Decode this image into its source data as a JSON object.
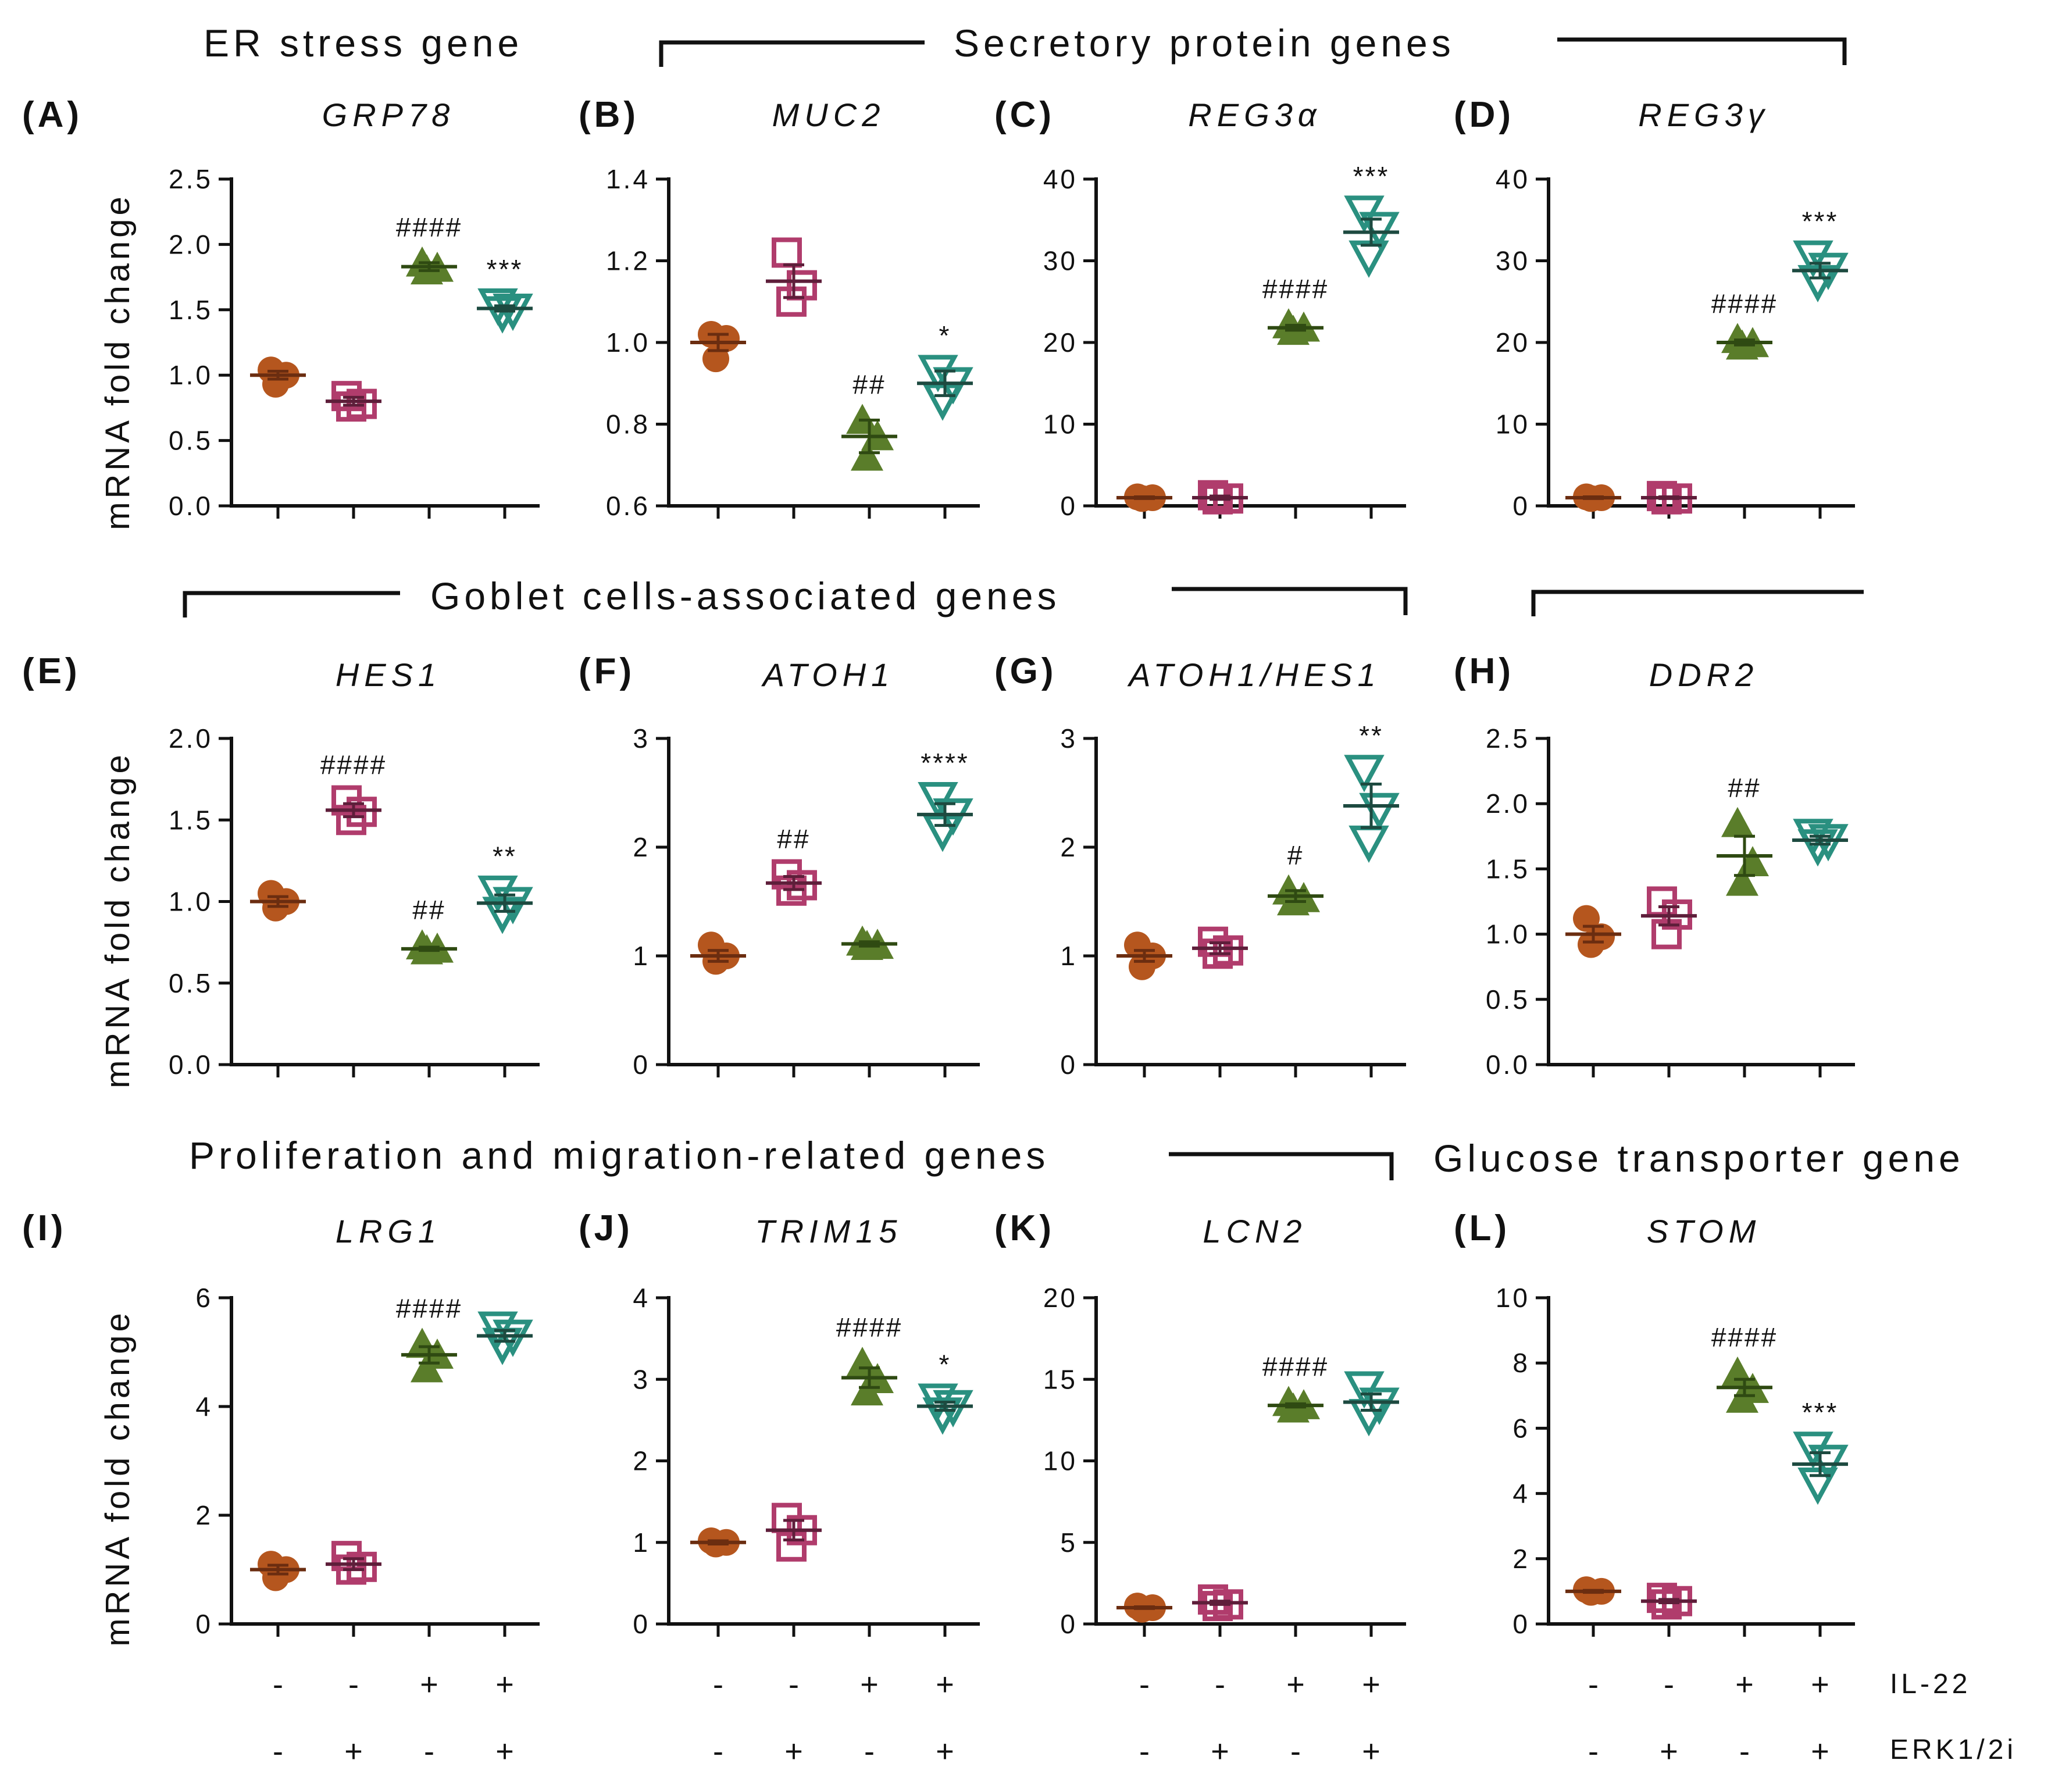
{
  "figure_headings": {
    "er_stress": "ER stress gene",
    "secretory": "Secretory protein genes",
    "goblet": "Goblet cells-associated genes",
    "proliferation": "Proliferation and migration-related genes",
    "glucose": "Glucose transporter gene"
  },
  "y_axis_label": "mRNA fold change",
  "conditions": {
    "il22": {
      "label": "IL-22",
      "signs": [
        "-",
        "-",
        "+",
        "+"
      ]
    },
    "erk": {
      "label": "ERK1/2i",
      "signs": [
        "-",
        "+",
        "-",
        "+"
      ]
    }
  },
  "group_colors": [
    "#b5561e",
    "#b03c6c",
    "#5a7d2a",
    "#2a9080"
  ],
  "group_markers": [
    "circle",
    "open-square",
    "triangle",
    "open-inverted-triangle"
  ],
  "chart_data": [
    {
      "type": "scatter",
      "panel": "(A)",
      "title": "GRP78",
      "ylabel": "mRNA fold change",
      "ylim": [
        0,
        2.5
      ],
      "yticks": [
        "0.0",
        "0.5",
        "1.0",
        "1.5",
        "2.0",
        "2.5"
      ],
      "groups": [
        {
          "mean": 1.0,
          "sem": 0.03,
          "points": [
            1.04,
            1.0,
            0.93
          ]
        },
        {
          "mean": 0.8,
          "sem": 0.03,
          "points": [
            0.84,
            0.78,
            0.76
          ]
        },
        {
          "mean": 1.83,
          "sem": 0.03,
          "points": [
            1.86,
            1.82,
            1.8
          ],
          "annotation": "####"
        },
        {
          "mean": 1.51,
          "sem": 0.02,
          "points": [
            1.54,
            1.5,
            1.48
          ],
          "annotation": "***"
        }
      ]
    },
    {
      "type": "scatter",
      "panel": "(B)",
      "title": "MUC2",
      "ylabel": "",
      "ylim": [
        0.6,
        1.4
      ],
      "yticks": [
        "0.6",
        "0.8",
        "1.0",
        "1.2",
        "1.4"
      ],
      "groups": [
        {
          "mean": 1.0,
          "sem": 0.02,
          "points": [
            1.02,
            1.01,
            0.96
          ]
        },
        {
          "mean": 1.15,
          "sem": 0.04,
          "points": [
            1.22,
            1.14,
            1.1
          ]
        },
        {
          "mean": 0.77,
          "sem": 0.04,
          "points": [
            0.81,
            0.77,
            0.72
          ],
          "annotation": "##"
        },
        {
          "mean": 0.9,
          "sem": 0.03,
          "points": [
            0.93,
            0.9,
            0.86
          ],
          "annotation": "*"
        }
      ]
    },
    {
      "type": "scatter",
      "panel": "(C)",
      "title": "REG3α",
      "ylabel": "",
      "ylim": [
        0,
        40
      ],
      "yticks": [
        "0",
        "10",
        "20",
        "30",
        "40"
      ],
      "groups": [
        {
          "mean": 1.0,
          "sem": 0.1,
          "points": [
            1.1,
            1.0,
            0.9
          ]
        },
        {
          "mean": 1.0,
          "sem": 0.2,
          "points": [
            1.3,
            0.9,
            0.8
          ]
        },
        {
          "mean": 21.8,
          "sem": 0.3,
          "points": [
            22.2,
            21.8,
            21.4
          ],
          "annotation": "####"
        },
        {
          "mean": 33.5,
          "sem": 1.6,
          "points": [
            36.0,
            34.0,
            30.5
          ],
          "annotation": "***"
        }
      ]
    },
    {
      "type": "scatter",
      "panel": "(D)",
      "title": "REG3γ",
      "ylabel": "",
      "ylim": [
        0,
        40
      ],
      "yticks": [
        "0",
        "10",
        "20",
        "30",
        "40"
      ],
      "groups": [
        {
          "mean": 1.0,
          "sem": 0.1,
          "points": [
            1.1,
            1.0,
            0.9
          ]
        },
        {
          "mean": 1.0,
          "sem": 0.1,
          "points": [
            1.2,
            0.9,
            0.8
          ]
        },
        {
          "mean": 20.0,
          "sem": 0.3,
          "points": [
            20.4,
            19.9,
            19.6
          ],
          "annotation": "####"
        },
        {
          "mean": 28.8,
          "sem": 0.9,
          "points": [
            30.5,
            29.0,
            27.5
          ],
          "annotation": "***"
        }
      ]
    },
    {
      "type": "scatter",
      "panel": "(E)",
      "title": "HES1",
      "ylabel": "mRNA fold change",
      "ylim": [
        0,
        2.0
      ],
      "yticks": [
        "0.0",
        "0.5",
        "1.0",
        "1.5",
        "2.0"
      ],
      "groups": [
        {
          "mean": 1.0,
          "sem": 0.03,
          "points": [
            1.05,
            1.0,
            0.96
          ]
        },
        {
          "mean": 1.56,
          "sem": 0.04,
          "points": [
            1.62,
            1.55,
            1.5
          ],
          "annotation": "####"
        },
        {
          "mean": 0.71,
          "sem": 0.01,
          "points": [
            0.73,
            0.71,
            0.7
          ],
          "annotation": "##"
        },
        {
          "mean": 0.99,
          "sem": 0.05,
          "points": [
            1.06,
            0.99,
            0.93
          ],
          "annotation": "**"
        }
      ]
    },
    {
      "type": "scatter",
      "panel": "(F)",
      "title": "ATOH1",
      "ylabel": "",
      "ylim": [
        0,
        3
      ],
      "yticks": [
        "0",
        "1",
        "2",
        "3"
      ],
      "groups": [
        {
          "mean": 1.0,
          "sem": 0.05,
          "points": [
            1.1,
            1.0,
            0.95
          ]
        },
        {
          "mean": 1.67,
          "sem": 0.06,
          "points": [
            1.75,
            1.65,
            1.6
          ],
          "annotation": "##"
        },
        {
          "mean": 1.11,
          "sem": 0.02,
          "points": [
            1.13,
            1.1,
            1.09
          ]
        },
        {
          "mean": 2.3,
          "sem": 0.1,
          "points": [
            2.45,
            2.3,
            2.15
          ],
          "annotation": "****"
        }
      ]
    },
    {
      "type": "scatter",
      "panel": "(G)",
      "title": "ATOH1/HES1",
      "ylabel": "",
      "ylim": [
        0,
        3
      ],
      "yticks": [
        "0",
        "1",
        "2",
        "3"
      ],
      "groups": [
        {
          "mean": 1.0,
          "sem": 0.05,
          "points": [
            1.1,
            1.0,
            0.9
          ]
        },
        {
          "mean": 1.07,
          "sem": 0.05,
          "points": [
            1.13,
            1.05,
            1.02
          ]
        },
        {
          "mean": 1.55,
          "sem": 0.05,
          "points": [
            1.6,
            1.53,
            1.5
          ],
          "annotation": "#"
        },
        {
          "mean": 2.38,
          "sem": 0.2,
          "points": [
            2.7,
            2.35,
            2.05
          ],
          "annotation": "**"
        }
      ]
    },
    {
      "type": "scatter",
      "panel": "(H)",
      "title": "DDR2",
      "ylabel": "",
      "ylim": [
        0,
        2.5
      ],
      "yticks": [
        "0.0",
        "0.5",
        "1.0",
        "1.5",
        "2.0",
        "2.5"
      ],
      "groups": [
        {
          "mean": 1.0,
          "sem": 0.06,
          "points": [
            1.12,
            0.98,
            0.92
          ]
        },
        {
          "mean": 1.14,
          "sem": 0.07,
          "points": [
            1.25,
            1.15,
            1.0
          ]
        },
        {
          "mean": 1.6,
          "sem": 0.15,
          "points": [
            1.85,
            1.55,
            1.4
          ],
          "annotation": "##"
        },
        {
          "mean": 1.72,
          "sem": 0.03,
          "points": [
            1.76,
            1.72,
            1.68
          ]
        }
      ]
    },
    {
      "type": "scatter",
      "panel": "(I)",
      "title": "LRG1",
      "ylabel": "mRNA fold change",
      "ylim": [
        0,
        6
      ],
      "yticks": [
        "0",
        "2",
        "4",
        "6"
      ],
      "groups": [
        {
          "mean": 1.0,
          "sem": 0.08,
          "points": [
            1.1,
            1.0,
            0.85
          ]
        },
        {
          "mean": 1.1,
          "sem": 0.1,
          "points": [
            1.25,
            1.05,
            1.0
          ]
        },
        {
          "mean": 4.95,
          "sem": 0.15,
          "points": [
            5.15,
            4.95,
            4.7
          ],
          "annotation": "####"
        },
        {
          "mean": 5.3,
          "sem": 0.1,
          "points": [
            5.45,
            5.3,
            5.15
          ]
        }
      ]
    },
    {
      "type": "scatter",
      "panel": "(J)",
      "title": "TRIM15",
      "ylabel": "",
      "ylim": [
        0,
        4
      ],
      "yticks": [
        "0",
        "1",
        "2",
        "3",
        "4"
      ],
      "groups": [
        {
          "mean": 1.0,
          "sem": 0.02,
          "points": [
            1.02,
            1.0,
            0.98
          ]
        },
        {
          "mean": 1.15,
          "sem": 0.12,
          "points": [
            1.3,
            1.15,
            0.95
          ]
        },
        {
          "mean": 3.02,
          "sem": 0.12,
          "points": [
            3.2,
            3.0,
            2.85
          ],
          "annotation": "####"
        },
        {
          "mean": 2.67,
          "sem": 0.05,
          "points": [
            2.75,
            2.67,
            2.58
          ],
          "annotation": "*"
        }
      ]
    },
    {
      "type": "scatter",
      "panel": "(K)",
      "title": "LCN2",
      "ylabel": "",
      "ylim": [
        0,
        20
      ],
      "yticks": [
        "0",
        "5",
        "10",
        "15",
        "20"
      ],
      "groups": [
        {
          "mean": 1.0,
          "sem": 0.05,
          "points": [
            1.1,
            1.0,
            0.9
          ]
        },
        {
          "mean": 1.3,
          "sem": 0.1,
          "points": [
            1.5,
            1.2,
            1.1
          ]
        },
        {
          "mean": 13.4,
          "sem": 0.1,
          "points": [
            13.6,
            13.4,
            13.2
          ],
          "annotation": "####"
        },
        {
          "mean": 13.6,
          "sem": 0.5,
          "points": [
            14.5,
            13.5,
            12.8
          ]
        }
      ]
    },
    {
      "type": "scatter",
      "panel": "(L)",
      "title": "STOM",
      "ylabel": "",
      "ylim": [
        0,
        10
      ],
      "yticks": [
        "0",
        "2",
        "4",
        "6",
        "8",
        "10"
      ],
      "groups": [
        {
          "mean": 1.0,
          "sem": 0.03,
          "points": [
            1.05,
            1.0,
            0.97
          ]
        },
        {
          "mean": 0.7,
          "sem": 0.05,
          "points": [
            0.8,
            0.7,
            0.6
          ]
        },
        {
          "mean": 7.25,
          "sem": 0.25,
          "points": [
            7.7,
            7.2,
            6.9
          ],
          "annotation": "####"
        },
        {
          "mean": 4.9,
          "sem": 0.35,
          "points": [
            5.4,
            5.0,
            4.3
          ],
          "annotation": "***"
        }
      ]
    }
  ]
}
